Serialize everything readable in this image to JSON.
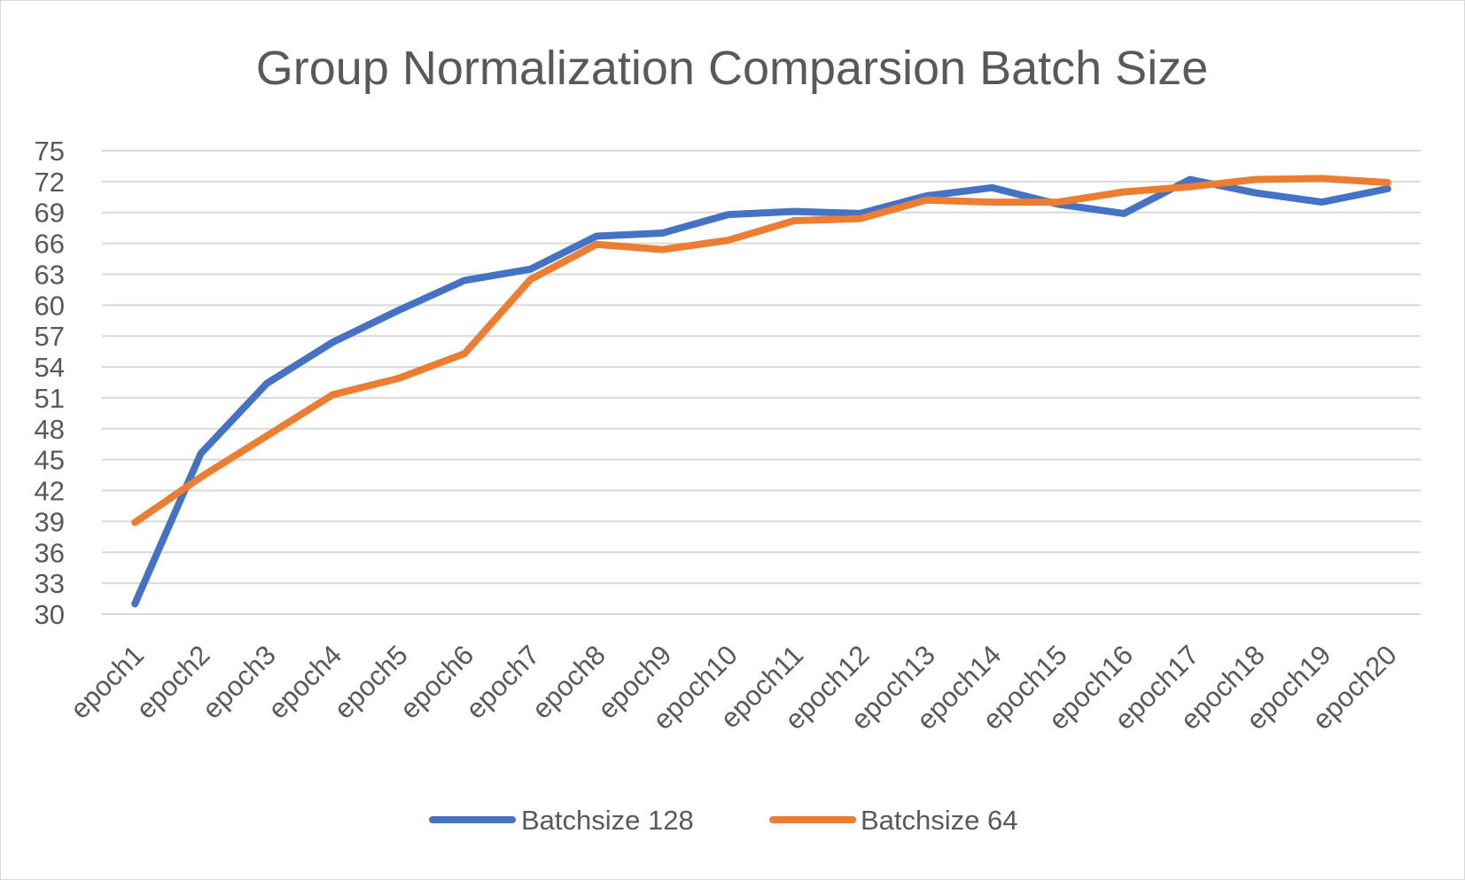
{
  "chart_data": {
    "type": "line",
    "title": "Group Normalization Comparsion Batch Size",
    "xlabel": "",
    "ylabel": "",
    "ylim": [
      30,
      75
    ],
    "yticks": [
      30,
      33,
      36,
      39,
      42,
      45,
      48,
      51,
      54,
      57,
      60,
      63,
      66,
      69,
      72,
      75
    ],
    "grid": true,
    "legend": "bottom",
    "categories": [
      "epoch1",
      "epoch2",
      "epoch3",
      "epoch4",
      "epoch5",
      "epoch6",
      "epoch7",
      "epoch8",
      "epoch9",
      "epoch10",
      "epoch11",
      "epoch12",
      "epoch13",
      "epoch14",
      "epoch15",
      "epoch16",
      "epoch17",
      "epoch18",
      "epoch19",
      "epoch20"
    ],
    "series": [
      {
        "name": "Batchsize 128",
        "color": "#4472c4",
        "values": [
          31.0,
          45.6,
          52.4,
          56.4,
          59.5,
          62.4,
          63.5,
          66.7,
          67.0,
          68.8,
          69.1,
          68.9,
          70.6,
          71.4,
          69.8,
          68.9,
          72.2,
          70.9,
          70.0,
          71.3
        ]
      },
      {
        "name": "Batchsize 64",
        "color": "#ed7d31",
        "values": [
          38.9,
          43.3,
          47.3,
          51.3,
          52.9,
          55.3,
          62.5,
          65.9,
          65.4,
          66.3,
          68.2,
          68.4,
          70.2,
          70.0,
          70.0,
          71.0,
          71.5,
          72.2,
          72.3,
          71.9
        ]
      }
    ]
  }
}
